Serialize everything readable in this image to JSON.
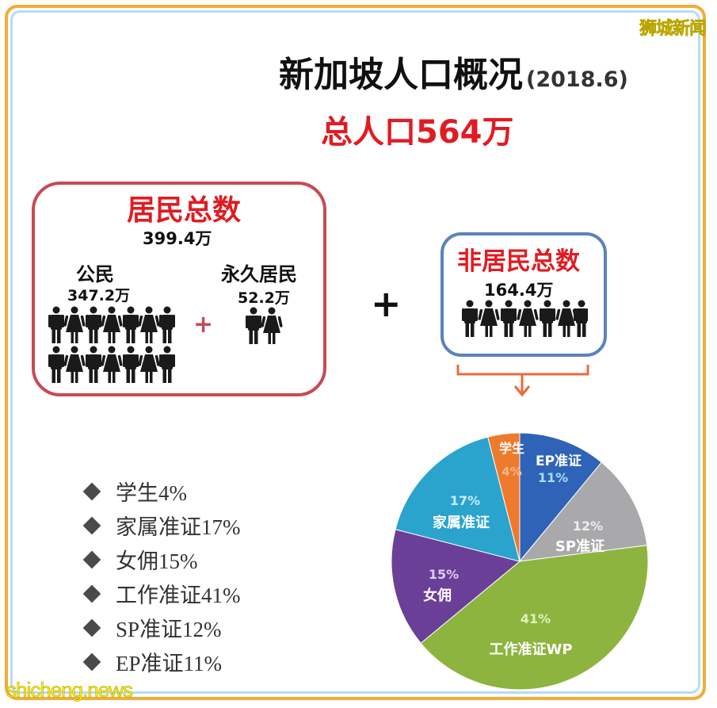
{
  "watermarks": {
    "top_right": "狮城新闻",
    "bottom_left": "shicheng.news"
  },
  "header": {
    "title": "新加坡人口概况",
    "date": "(2018.6)",
    "total": "总人口564万"
  },
  "residents": {
    "title": "居民总数",
    "count": "399.4万",
    "citizens": {
      "label": "公民",
      "count": "347.2万"
    },
    "permanent_residents": {
      "label": "永久居民",
      "count": "52.2万"
    },
    "plus": "+"
  },
  "operator": "+",
  "non_residents": {
    "title": "非居民总数",
    "count": "164.4万"
  },
  "legend": [
    {
      "label": "学生4%"
    },
    {
      "label": "家属准证17%"
    },
    {
      "label": "女佣15%"
    },
    {
      "label": "工作准证41%"
    },
    {
      "label": "SP准证12%"
    },
    {
      "label": "EP准证11%"
    }
  ],
  "pie_labels": {
    "ep": {
      "name": "EP准证",
      "pct": "11%"
    },
    "sp": {
      "name": "SP准证",
      "pct": "12%"
    },
    "wp": {
      "name": "工作准证WP",
      "pct": "41%"
    },
    "maid": {
      "name": "女佣",
      "pct": "15%"
    },
    "dependant": {
      "name": "家属准证",
      "pct": "17%"
    },
    "student": {
      "name": "学生",
      "pct": "4%"
    }
  },
  "chart_data": {
    "type": "pie",
    "title": "非居民总数 164.4万 构成",
    "categories": [
      "EP准证",
      "SP准证",
      "工作准证WP",
      "女佣",
      "家属准证",
      "学生"
    ],
    "values": [
      11,
      12,
      41,
      15,
      17,
      4
    ],
    "unit": "%",
    "colors": [
      "#2f63b8",
      "#a9a9ab",
      "#8db43f",
      "#6a3f98",
      "#2aa3cd",
      "#ee7a2e"
    ],
    "start_angle_deg": 0,
    "direction": "clockwise",
    "population_breakdown": {
      "total": 564,
      "residents": 399.4,
      "citizens": 347.2,
      "permanent_residents": 52.2,
      "non_residents": 164.4,
      "unit": "万"
    }
  }
}
